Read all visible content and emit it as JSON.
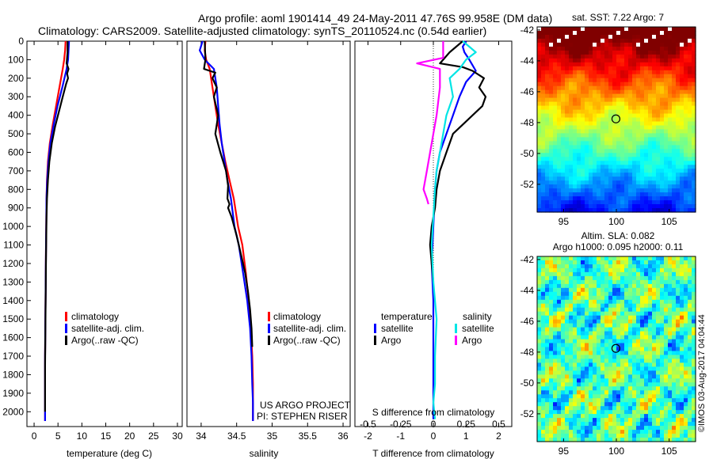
{
  "header": {
    "title_line1": "Argo profile: aoml 1901414_49 24-May-2011 47.76S 99.958E (DM data)",
    "title_line2": "Climatology: CARS2009. Satellite-adjusted climatology: synTS_20110524.nc (0.54d earlier)"
  },
  "colors": {
    "climatology": "#ff0000",
    "satellite": "#0000ff",
    "argo": "#000000",
    "satellite_salinity": "#00e5e5",
    "argo_salinity": "#ff00ff"
  },
  "chart_data": [
    {
      "type": "line",
      "title": "",
      "xlabel": "temperature (deg C)",
      "ylabel": "",
      "xlim": [
        -1.5,
        31
      ],
      "ylim": [
        2080,
        0
      ],
      "xticks": [
        0,
        5,
        10,
        15,
        20,
        25,
        30
      ],
      "yticks": [
        0,
        100,
        200,
        300,
        400,
        500,
        600,
        700,
        800,
        900,
        1000,
        1100,
        1200,
        1300,
        1400,
        1500,
        1600,
        1700,
        1800,
        1900,
        2000
      ],
      "legend": [
        "climatology",
        "satellite-adj. clim.",
        "Argo(..raw -QC)"
      ],
      "series": [
        {
          "name": "climatology",
          "color": "#ff0000",
          "x": [
            6.6,
            6.5,
            6.3,
            6.0,
            5.3,
            4.6,
            3.9,
            3.3,
            2.9,
            2.7,
            2.6,
            2.55,
            2.5,
            2.45,
            2.4,
            2.35,
            2.3,
            2.3,
            2.3,
            2.3
          ],
          "y": [
            0,
            50,
            100,
            150,
            250,
            350,
            450,
            550,
            650,
            750,
            850,
            1000,
            1100,
            1250,
            1400,
            1550,
            1700,
            1850,
            1950,
            2050
          ]
        },
        {
          "name": "satellite-adj. clim.",
          "color": "#0000ff",
          "x": [
            7.3,
            7.2,
            7.1,
            6.8,
            5.9,
            4.9,
            4.1,
            3.4,
            3.0,
            2.75,
            2.6,
            2.55,
            2.5,
            2.45,
            2.4,
            2.35,
            2.3,
            2.3,
            2.3,
            2.3
          ],
          "y": [
            0,
            50,
            100,
            150,
            250,
            350,
            450,
            550,
            650,
            750,
            850,
            1000,
            1100,
            1250,
            1400,
            1550,
            1700,
            1850,
            1950,
            2050
          ]
        },
        {
          "name": "Argo(..raw -QC)",
          "color": "#000000",
          "x": [
            7.0,
            7.0,
            6.8,
            7.2,
            6.9,
            7.1,
            6.7,
            6.0,
            5.2,
            4.4,
            3.7,
            3.2,
            2.9,
            2.7,
            2.6,
            2.55,
            2.5,
            2.45,
            2.4,
            2.35,
            2.3,
            2.3,
            2.3
          ],
          "y": [
            0,
            60,
            120,
            150,
            175,
            200,
            230,
            300,
            380,
            460,
            550,
            650,
            750,
            850,
            950,
            1050,
            1150,
            1300,
            1450,
            1600,
            1750,
            1900,
            2000
          ]
        }
      ]
    },
    {
      "type": "line",
      "title": "",
      "xlabel": "salinity",
      "ylabel": "",
      "xlim": [
        33.8,
        36.1
      ],
      "ylim": [
        2080,
        0
      ],
      "xticks": [
        34,
        34.5,
        35,
        35.5,
        36
      ],
      "xticklabels": [
        "34",
        "34.5",
        "35",
        "35.5",
        "36"
      ],
      "legend": [
        "climatology",
        "satellite-adj. clim.",
        "Argo(..raw -QC)"
      ],
      "annotations": [
        "US ARGO PROJECT",
        "PI: STEPHEN RISER"
      ],
      "series": [
        {
          "name": "climatology",
          "color": "#ff0000",
          "x": [
            34.06,
            34.05,
            34.07,
            34.12,
            34.16,
            34.2,
            34.24,
            34.29,
            34.34,
            34.4,
            34.46,
            34.52,
            34.58,
            34.63,
            34.67,
            34.7,
            34.72,
            34.73,
            34.73,
            34.73
          ],
          "y": [
            0,
            50,
            100,
            150,
            250,
            350,
            450,
            550,
            650,
            750,
            850,
            1000,
            1100,
            1250,
            1400,
            1550,
            1700,
            1850,
            1950,
            2050
          ]
        },
        {
          "name": "satellite-adj. clim.",
          "color": "#0000ff",
          "x": [
            34.02,
            33.98,
            34.05,
            34.18,
            34.22,
            34.24,
            34.26,
            34.29,
            34.33,
            34.37,
            34.42,
            34.47,
            34.53,
            34.59,
            34.65,
            34.69,
            34.71,
            34.72,
            34.73,
            34.73
          ],
          "y": [
            0,
            50,
            100,
            150,
            250,
            350,
            450,
            550,
            650,
            750,
            850,
            1000,
            1100,
            1250,
            1400,
            1550,
            1700,
            1850,
            1950,
            2050
          ]
        },
        {
          "name": "Argo(..raw -QC)",
          "color": "#000000",
          "x": [
            34.05,
            34.06,
            34.04,
            34.12,
            34.2,
            34.16,
            34.22,
            34.18,
            34.24,
            34.2,
            34.27,
            34.31,
            34.35,
            34.38,
            34.37,
            34.4,
            34.38,
            34.43,
            34.5,
            34.56,
            34.62,
            34.66,
            34.69,
            34.71,
            34.72
          ],
          "y": [
            0,
            100,
            150,
            160,
            170,
            200,
            250,
            300,
            400,
            500,
            600,
            650,
            700,
            780,
            850,
            880,
            900,
            950,
            1050,
            1150,
            1250,
            1350,
            1450,
            1550,
            1650
          ]
        }
      ]
    },
    {
      "type": "line",
      "title": "",
      "xlabel": "T difference from climatology",
      "ylabel": "",
      "xlim": [
        -2.4,
        2.4
      ],
      "ylim": [
        2080,
        0
      ],
      "xticks": [
        -2,
        -1,
        0,
        1,
        2
      ],
      "secondary_xlabel": "S difference from climatology",
      "secondary_xticks": [
        "-0.5",
        "-0.25",
        "0",
        "0.25",
        "0.5"
      ],
      "legend_groups": [
        "temperature",
        "salinity"
      ],
      "legend": [
        [
          "satellite",
          "Argo"
        ],
        [
          "satellite",
          "Argo"
        ]
      ],
      "series": [
        {
          "name": "satellite",
          "color": "#0000ff",
          "x": [
            1.0,
            0.9,
            0.95,
            1.1,
            1.3,
            1.0,
            0.8,
            0.6,
            0.4,
            0.2,
            0.1,
            0.05,
            0.0,
            -0.05,
            0.0,
            0.0,
            0.0,
            0.0,
            0.0,
            0.0
          ],
          "y": [
            0,
            30,
            60,
            100,
            160,
            220,
            300,
            400,
            500,
            600,
            700,
            800,
            1000,
            1200,
            1400,
            1600,
            1800,
            1900,
            2000,
            2040
          ]
        },
        {
          "name": "Argo",
          "color": "#000000",
          "x": [
            0.9,
            0.5,
            0.2,
            0.9,
            1.2,
            1.55,
            1.4,
            1.6,
            1.5,
            1.2,
            0.9,
            0.6,
            0.4,
            0.3,
            0.2,
            0.1,
            0.05,
            -0.05,
            -0.1,
            -0.05,
            0.0
          ],
          "y": [
            0,
            60,
            120,
            140,
            160,
            200,
            250,
            300,
            350,
            400,
            450,
            500,
            600,
            650,
            700,
            800,
            900,
            1000,
            1100,
            1200,
            1300
          ]
        },
        {
          "name": "satellite",
          "color": "#00e5e5",
          "x": [
            0.9,
            1.1,
            1.3,
            1.0,
            0.8,
            0.5,
            0.6,
            0.4,
            0.3,
            0.2,
            0.1,
            0.05,
            0.0,
            -0.05,
            0.0,
            0.1,
            0.05,
            0.05,
            0.0,
            0.05
          ],
          "y": [
            0,
            30,
            60,
            100,
            150,
            200,
            300,
            400,
            500,
            600,
            700,
            800,
            950,
            1100,
            1300,
            1500,
            1700,
            1850,
            1950,
            2040
          ]
        },
        {
          "name": "Argo",
          "color": "#ff00ff",
          "x": [
            0.3,
            0.3,
            -0.5,
            0.2,
            0.2,
            0.1,
            0.0,
            -0.1,
            -0.2,
            -0.3,
            -0.2,
            -0.15
          ],
          "y": [
            0,
            90,
            120,
            150,
            250,
            400,
            500,
            600,
            700,
            800,
            850,
            880
          ]
        }
      ]
    },
    {
      "type": "heatmap",
      "title": "sat. SST: 7.22 Argo: 7",
      "xticks": [
        95,
        100,
        105
      ],
      "yticks": [
        -42,
        -44,
        -46,
        -48,
        -50,
        -52
      ],
      "xlim": [
        92.5,
        107.5
      ],
      "ylim": [
        -53.8,
        -41.8
      ],
      "marker": {
        "lon": 99.958,
        "lat": -47.76
      }
    },
    {
      "type": "heatmap",
      "title": "Altim. SLA: 0.082",
      "subtitle": "Argo h1000: 0.095 h2000: 0.11",
      "xticks": [
        95,
        100,
        105
      ],
      "yticks": [
        -42,
        -44,
        -46,
        -48,
        -50,
        -52
      ],
      "xlim": [
        92.5,
        107.5
      ],
      "ylim": [
        -53.8,
        -41.8
      ],
      "marker": {
        "lon": 99.958,
        "lat": -47.76
      }
    }
  ],
  "legend1": {
    "items": [
      "climatology",
      "satellite-adj. clim.",
      "Argo(..raw -QC)"
    ]
  },
  "legend2": {
    "items": [
      "climatology",
      "satellite-adj. clim.",
      "Argo(..raw -QC)"
    ]
  },
  "legend3": {
    "temperature": "temperature",
    "salinity": "salinity",
    "satellite": "satellite",
    "argo": "Argo"
  },
  "credits": {
    "project": "US ARGO PROJECT",
    "pi": "PI: STEPHEN RISER",
    "imos": "©IMOS 03-Aug-2017 04:04:44"
  }
}
